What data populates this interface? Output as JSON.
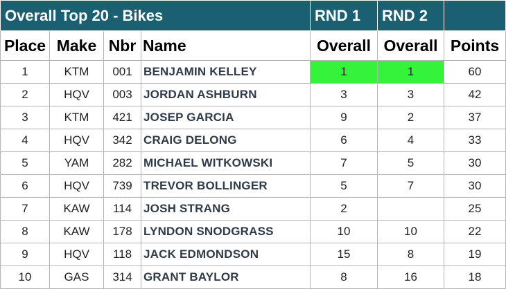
{
  "title": "Overall Top 20 - Bikes",
  "round_headers": [
    "RND 1",
    "RND 2"
  ],
  "columns": [
    "Place",
    "Make",
    "Nbr",
    "Name",
    "Overall",
    "Overall",
    "Points"
  ],
  "highlight_color": "#35f23a",
  "header_color": "#1b5f72",
  "rows": [
    {
      "place": "1",
      "make": "KTM",
      "nbr": "001",
      "name": "BENJAMIN KELLEY",
      "rnd1": "1",
      "rnd2": "1",
      "points": "60"
    },
    {
      "place": "2",
      "make": "HQV",
      "nbr": "003",
      "name": "JORDAN ASHBURN",
      "rnd1": "3",
      "rnd2": "3",
      "points": "42"
    },
    {
      "place": "3",
      "make": "KTM",
      "nbr": "421",
      "name": "JOSEP GARCIA",
      "rnd1": "9",
      "rnd2": "2",
      "points": "37"
    },
    {
      "place": "4",
      "make": "HQV",
      "nbr": "342",
      "name": "CRAIG DELONG",
      "rnd1": "6",
      "rnd2": "4",
      "points": "33"
    },
    {
      "place": "5",
      "make": "YAM",
      "nbr": "282",
      "name": "MICHAEL WITKOWSKI",
      "rnd1": "7",
      "rnd2": "5",
      "points": "30"
    },
    {
      "place": "6",
      "make": "HQV",
      "nbr": "739",
      "name": "TREVOR BOLLINGER",
      "rnd1": "5",
      "rnd2": "7",
      "points": "30"
    },
    {
      "place": "7",
      "make": "KAW",
      "nbr": "114",
      "name": "JOSH STRANG",
      "rnd1": "2",
      "rnd2": "",
      "points": "25"
    },
    {
      "place": "8",
      "make": "KAW",
      "nbr": "178",
      "name": "LYNDON SNODGRASS",
      "rnd1": "10",
      "rnd2": "10",
      "points": "22"
    },
    {
      "place": "9",
      "make": "HQV",
      "nbr": "118",
      "name": "JACK EDMONDSON",
      "rnd1": "15",
      "rnd2": "8",
      "points": "19"
    },
    {
      "place": "10",
      "make": "GAS",
      "nbr": "314",
      "name": "GRANT BAYLOR",
      "rnd1": "8",
      "rnd2": "16",
      "points": "18"
    }
  ]
}
